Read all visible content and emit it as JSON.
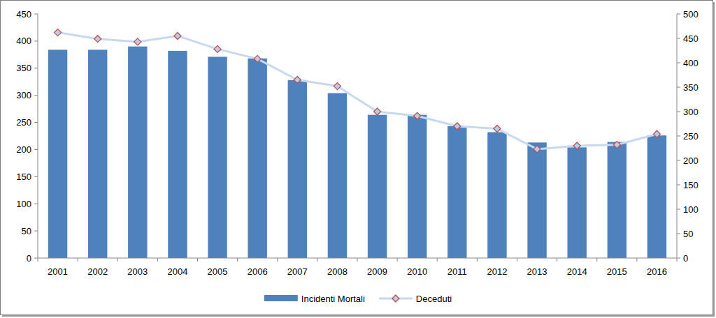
{
  "chart_data": {
    "type": "bar",
    "categories": [
      "2001",
      "2002",
      "2003",
      "2004",
      "2005",
      "2006",
      "2007",
      "2008",
      "2009",
      "2010",
      "2011",
      "2012",
      "2013",
      "2014",
      "2015",
      "2016"
    ],
    "series": [
      {
        "name": "Incidenti Mortali",
        "type": "bar",
        "color": "#4f81bd",
        "values": [
          384,
          384,
          390,
          382,
          371,
          368,
          328,
          304,
          264,
          264,
          243,
          232,
          213,
          204,
          214,
          226
        ]
      },
      {
        "name": "Deceduti",
        "type": "line",
        "axis": "y2",
        "color": "#c6d9f1",
        "marker": "diamond",
        "values": [
          462,
          449,
          443,
          455,
          428,
          408,
          365,
          352,
          300,
          291,
          270,
          265,
          223,
          230,
          232,
          254
        ]
      }
    ],
    "ylim": [
      0,
      450
    ],
    "yticks": [
      0,
      50,
      100,
      150,
      200,
      250,
      300,
      350,
      400,
      450
    ],
    "y2lim": [
      0,
      500
    ],
    "y2ticks": [
      0,
      50,
      100,
      150,
      200,
      250,
      300,
      350,
      400,
      450,
      500
    ],
    "grid": false,
    "legend": "bottom"
  }
}
